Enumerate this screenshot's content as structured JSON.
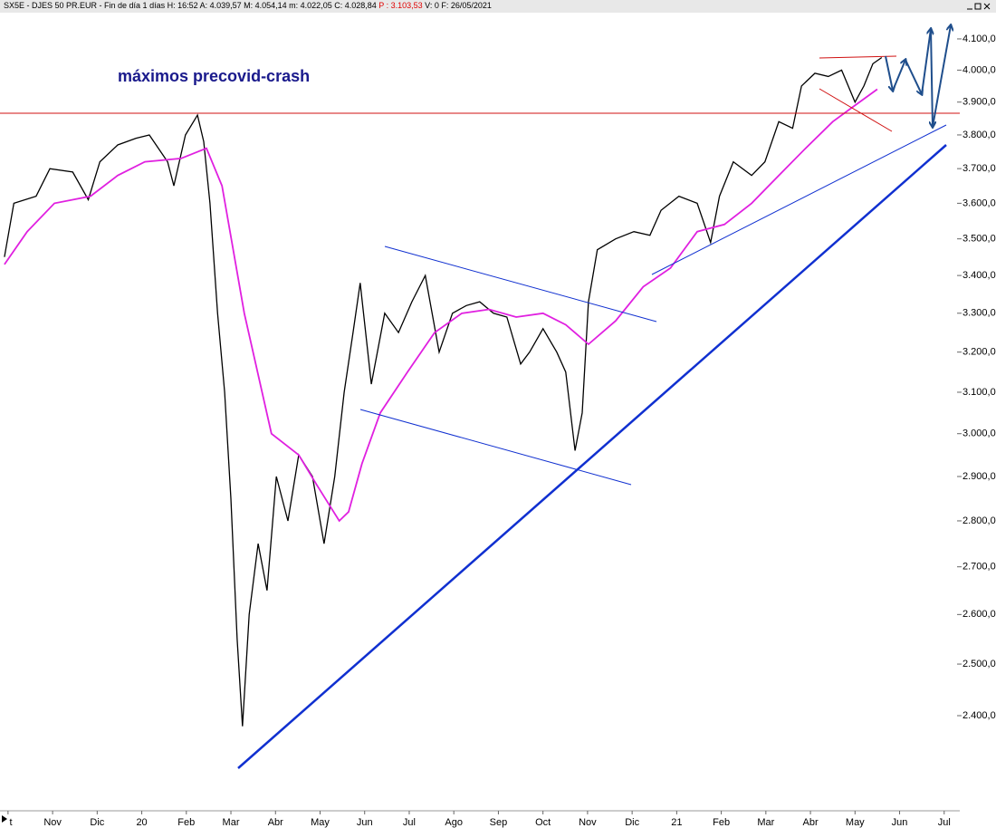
{
  "chart_data": {
    "type": "line",
    "title": "SX5E - DJES 50 PR.EUR - Fin de día 1 días H: 16:52 A: 4.039,57 M: 4.054,14 m: 4.022,05 C: 4.028,84",
    "title_highlight": "P : 3.103,53",
    "title_tail": "V: 0 F: 26/05/2021",
    "annotation": "máximos precovid-crash",
    "log_scale": true,
    "xlim": [
      -0.18,
      21.35
    ],
    "ylim": [
      2242,
      4174
    ],
    "xticks": [
      {
        "value": 0,
        "label": "t"
      },
      {
        "value": 1,
        "label": "Nov"
      },
      {
        "value": 2,
        "label": "Dic"
      },
      {
        "value": 3,
        "label": "20"
      },
      {
        "value": 4,
        "label": "Feb"
      },
      {
        "value": 5,
        "label": "Mar"
      },
      {
        "value": 6,
        "label": "Abr"
      },
      {
        "value": 7,
        "label": "May"
      },
      {
        "value": 8,
        "label": "Jun"
      },
      {
        "value": 9,
        "label": "Jul"
      },
      {
        "value": 10,
        "label": "Ago"
      },
      {
        "value": 11,
        "label": "Sep"
      },
      {
        "value": 12,
        "label": "Oct"
      },
      {
        "value": 13,
        "label": "Nov"
      },
      {
        "value": 14,
        "label": "Dic"
      },
      {
        "value": 15,
        "label": "21"
      },
      {
        "value": 16,
        "label": "Feb"
      },
      {
        "value": 17,
        "label": "Mar"
      },
      {
        "value": 18,
        "label": "Abr"
      },
      {
        "value": 19,
        "label": "May"
      },
      {
        "value": 20,
        "label": "Jun"
      },
      {
        "value": 21,
        "label": "Jul"
      }
    ],
    "yticks": [
      {
        "value": 2400,
        "label": "2.400,00"
      },
      {
        "value": 2500,
        "label": "2.500,00"
      },
      {
        "value": 2600,
        "label": "2.600,00"
      },
      {
        "value": 2700,
        "label": "2.700,00"
      },
      {
        "value": 2800,
        "label": "2.800,00"
      },
      {
        "value": 2900,
        "label": "2.900,00"
      },
      {
        "value": 3000,
        "label": "3.000,00"
      },
      {
        "value": 3100,
        "label": "3.100,00"
      },
      {
        "value": 3200,
        "label": "3.200,00"
      },
      {
        "value": 3300,
        "label": "3.300,00"
      },
      {
        "value": 3400,
        "label": "3.400,00"
      },
      {
        "value": 3500,
        "label": "3.500,00"
      },
      {
        "value": 3600,
        "label": "3.600,00"
      },
      {
        "value": 3700,
        "label": "3.700,00"
      },
      {
        "value": 3800,
        "label": "3.800,00"
      },
      {
        "value": 3900,
        "label": "3.900,00"
      },
      {
        "value": 4000,
        "label": "4.000,00"
      },
      {
        "value": 4100,
        "label": "4.100,00"
      }
    ],
    "series": [
      {
        "color": "#000000",
        "x": [
          -0.08,
          0.13,
          0.63,
          0.94,
          1.45,
          1.8,
          2.06,
          2.46,
          2.87,
          3.17,
          3.58,
          3.72,
          3.98,
          4.25,
          4.39,
          4.53,
          4.7,
          4.86,
          5.0,
          5.14,
          5.26,
          5.41,
          5.61,
          5.81,
          6.02,
          6.28,
          6.52,
          6.83,
          7.09,
          7.33,
          7.54,
          7.74,
          7.9,
          8.15,
          8.45,
          8.76,
          9.06,
          9.36,
          9.67,
          9.97,
          10.28,
          10.58,
          10.89,
          11.19,
          11.5,
          11.7,
          12.0,
          12.31,
          12.51,
          12.72,
          12.88,
          13.02,
          13.22,
          13.63,
          14.04,
          14.4,
          14.65,
          15.05,
          15.46,
          15.76,
          15.96,
          16.27,
          16.68,
          16.98,
          17.29,
          17.6,
          17.8,
          18.1,
          18.4,
          18.7,
          19.0,
          19.2,
          19.4,
          19.6
        ],
        "values": [
          3450,
          3600,
          3620,
          3700,
          3690,
          3610,
          3720,
          3770,
          3790,
          3800,
          3720,
          3650,
          3800,
          3860,
          3780,
          3600,
          3300,
          3100,
          2850,
          2550,
          2380,
          2600,
          2750,
          2650,
          2900,
          2800,
          2950,
          2900,
          2750,
          2900,
          3100,
          3250,
          3380,
          3120,
          3300,
          3250,
          3330,
          3400,
          3200,
          3300,
          3320,
          3330,
          3300,
          3290,
          3170,
          3200,
          3260,
          3200,
          3150,
          2960,
          3050,
          3330,
          3470,
          3500,
          3520,
          3510,
          3580,
          3620,
          3600,
          3490,
          3620,
          3720,
          3680,
          3720,
          3840,
          3820,
          3950,
          3990,
          3980,
          4000,
          3900,
          3950,
          4020,
          4040
        ]
      },
      {
        "color": "#e020e0",
        "x": [
          -0.08,
          0.43,
          1.04,
          1.85,
          2.46,
          3.07,
          3.88,
          4.45,
          4.8,
          5.3,
          5.91,
          6.52,
          6.93,
          7.43,
          7.64,
          7.94,
          8.35,
          8.96,
          9.57,
          10.18,
          10.79,
          11.4,
          12.0,
          12.51,
          13.02,
          13.63,
          14.25,
          14.86,
          15.46,
          16.07,
          16.68,
          17.29,
          17.89,
          18.5,
          18.9,
          19.5
        ],
        "values": [
          3430,
          3520,
          3600,
          3620,
          3680,
          3720,
          3730,
          3760,
          3650,
          3300,
          3000,
          2950,
          2880,
          2800,
          2820,
          2930,
          3050,
          3150,
          3250,
          3300,
          3310,
          3290,
          3300,
          3270,
          3220,
          3280,
          3370,
          3420,
          3520,
          3540,
          3600,
          3680,
          3760,
          3840,
          3880,
          3940
        ]
      }
    ]
  }
}
